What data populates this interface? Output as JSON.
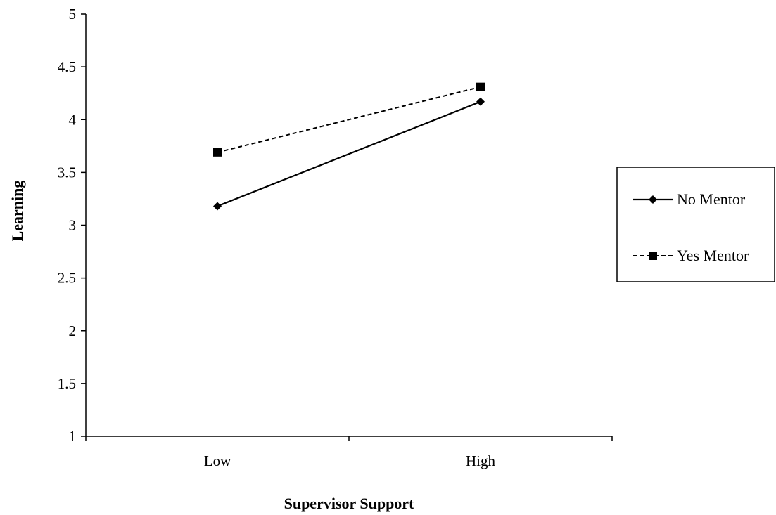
{
  "chart_data": {
    "type": "line",
    "title": "",
    "xlabel": "Supervisor Support",
    "ylabel": "Learning",
    "categories": [
      "Low",
      "High"
    ],
    "ylim": [
      1,
      5
    ],
    "yticks": [
      1,
      1.5,
      2,
      2.5,
      3,
      3.5,
      4,
      4.5,
      5
    ],
    "ytick_labels": [
      "1",
      "1.5",
      "2",
      "2.5",
      "3",
      "3.5",
      "4",
      "4.5",
      "5"
    ],
    "grid": false,
    "legend_position": "right",
    "series": [
      {
        "name": "No Mentor",
        "values": [
          3.18,
          4.17
        ],
        "line_style": "solid",
        "marker": "diamond",
        "color": "#000000"
      },
      {
        "name": "Yes Mentor",
        "values": [
          3.69,
          4.31
        ],
        "line_style": "dashed",
        "marker": "square",
        "color": "#000000"
      }
    ]
  }
}
